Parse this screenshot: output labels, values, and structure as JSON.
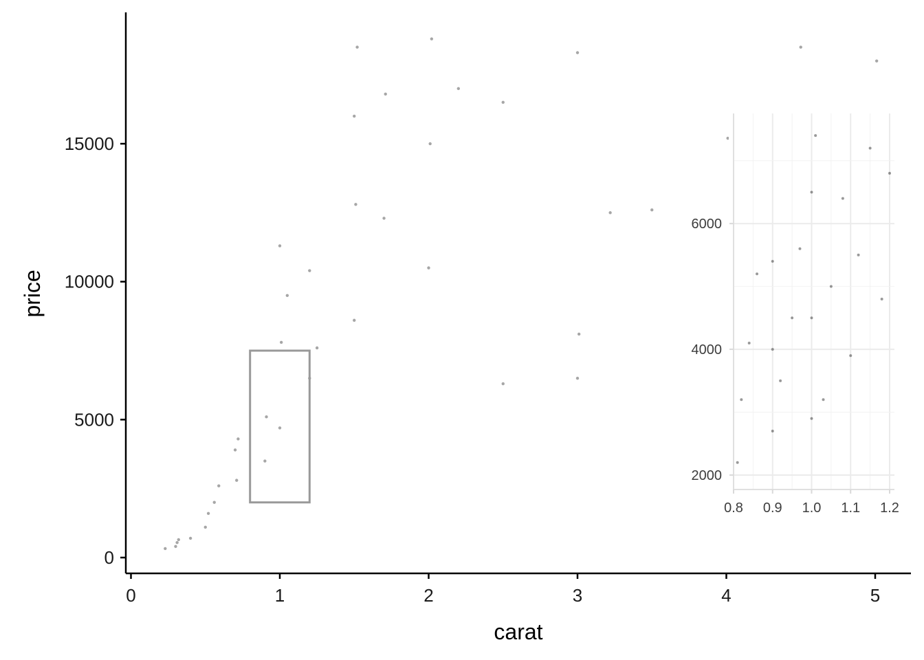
{
  "chart_data": [
    {
      "type": "scatter",
      "xlabel": "carat",
      "ylabel": "price",
      "xlim": [
        0,
        5.1
      ],
      "ylim": [
        0,
        18900
      ],
      "x_ticks": [
        0,
        1,
        2,
        3,
        4,
        5
      ],
      "y_ticks": [
        0,
        5000,
        10000,
        15000
      ],
      "x_tick_labels": [
        "0",
        "1",
        "2",
        "3",
        "4",
        "5"
      ],
      "y_tick_labels": [
        "0",
        "5000",
        "10000",
        "15000"
      ],
      "grid": false,
      "point_color": "#000000",
      "point_alpha": 0.35,
      "highlight_region": {
        "x": [
          0.8,
          1.2
        ],
        "y": [
          2000,
          7500
        ],
        "color": "#999999"
      },
      "series": [
        {
          "values": [
            [
              0.23,
              326
            ],
            [
              0.3,
              402
            ],
            [
              0.31,
              544
            ],
            [
              0.32,
              650
            ],
            [
              0.4,
              700
            ],
            [
              0.5,
              1100
            ],
            [
              0.52,
              1600
            ],
            [
              0.56,
              2000
            ],
            [
              0.59,
              2600
            ],
            [
              0.71,
              2800
            ],
            [
              0.7,
              3900
            ],
            [
              0.72,
              4300
            ],
            [
              0.9,
              3500
            ],
            [
              0.91,
              5100
            ],
            [
              1.0,
              4700
            ],
            [
              1.01,
              7800
            ],
            [
              1.0,
              11300
            ],
            [
              1.05,
              9500
            ],
            [
              1.2,
              6500
            ],
            [
              1.2,
              10400
            ],
            [
              1.25,
              7600
            ],
            [
              1.5,
              8600
            ],
            [
              1.51,
              12800
            ],
            [
              1.5,
              16000
            ],
            [
              1.52,
              18500
            ],
            [
              1.7,
              12300
            ],
            [
              1.71,
              16800
            ],
            [
              2.0,
              10500
            ],
            [
              2.01,
              15000
            ],
            [
              2.02,
              18800
            ],
            [
              2.2,
              17000
            ],
            [
              2.5,
              16500
            ],
            [
              2.5,
              6300
            ],
            [
              3.0,
              18300
            ],
            [
              3.01,
              8100
            ],
            [
              3.0,
              6500
            ],
            [
              3.22,
              12500
            ],
            [
              3.5,
              12600
            ],
            [
              4.01,
              15200
            ],
            [
              4.5,
              18500
            ],
            [
              5.01,
              18000
            ]
          ]
        }
      ]
    },
    {
      "type": "scatter",
      "xlabel": "",
      "ylabel": "",
      "xlim": [
        0.8,
        1.2
      ],
      "ylim": [
        2000,
        7500
      ],
      "x_ticks": [
        0.8,
        0.9,
        1.0,
        1.1,
        1.2
      ],
      "y_ticks": [
        2000,
        4000,
        6000
      ],
      "x_tick_labels": [
        "0.8",
        "0.9",
        "1.0",
        "1.1",
        "1.2"
      ],
      "y_tick_labels": [
        "2000",
        "4000",
        "6000"
      ],
      "grid": true,
      "point_color": "#000000",
      "point_alpha": 0.4,
      "series": [
        {
          "values": [
            [
              0.81,
              2200
            ],
            [
              0.82,
              3200
            ],
            [
              0.84,
              4100
            ],
            [
              0.86,
              5200
            ],
            [
              0.9,
              2700
            ],
            [
              0.9,
              4000
            ],
            [
              0.9,
              5400
            ],
            [
              0.92,
              3500
            ],
            [
              0.95,
              4500
            ],
            [
              0.97,
              5600
            ],
            [
              1.0,
              2900
            ],
            [
              1.0,
              4500
            ],
            [
              1.0,
              6500
            ],
            [
              1.01,
              7400
            ],
            [
              1.03,
              3200
            ],
            [
              1.05,
              5000
            ],
            [
              1.08,
              6400
            ],
            [
              1.1,
              3900
            ],
            [
              1.12,
              5500
            ],
            [
              1.15,
              7200
            ],
            [
              1.18,
              4800
            ],
            [
              1.2,
              6800
            ]
          ]
        }
      ]
    }
  ]
}
